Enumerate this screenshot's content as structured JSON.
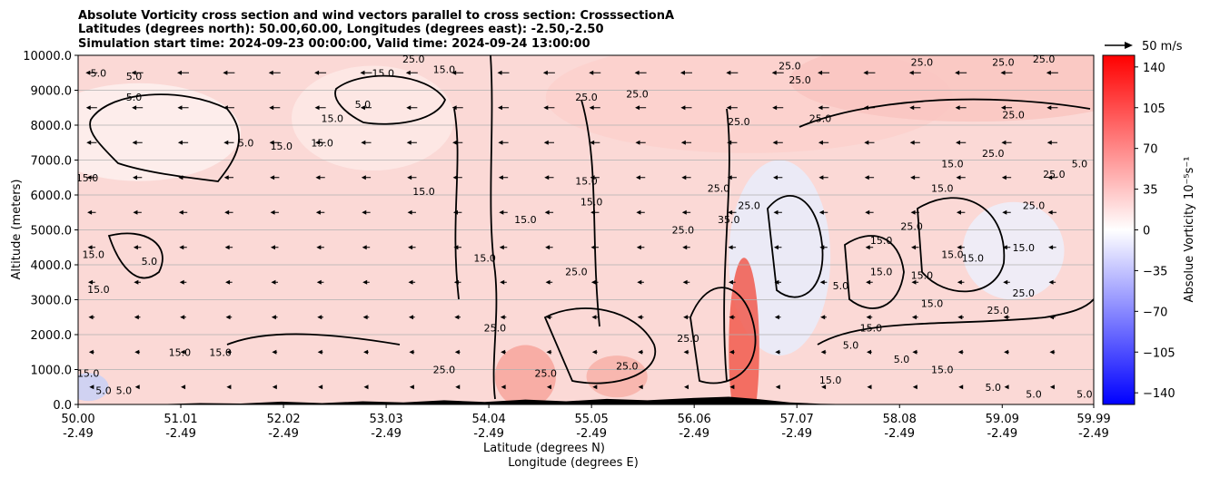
{
  "chart_data": {
    "type": "heatmap",
    "title_lines": [
      "Absolute Vorticity cross section and wind vectors parallel to cross section: CrosssectionA",
      "Latitudes (degrees north): 50.00,60.00, Longitudes (degrees east): -2.50,-2.50",
      "Simulation start time: 2024-09-23 00:00:00, Valid time: 2024-09-24 13:00:00"
    ],
    "ylabel": "Altitude (meters)",
    "xlabel_lines": [
      "Latitude (degrees N)",
      "Longitude (degrees E)"
    ],
    "ylim": [
      0,
      10000
    ],
    "y_ticks": [
      0,
      1000,
      2000,
      3000,
      4000,
      5000,
      6000,
      7000,
      8000,
      9000,
      10000
    ],
    "y_tick_labels": [
      "0.0",
      "1000.0",
      "2000.0",
      "3000.0",
      "4000.0",
      "5000.0",
      "6000.0",
      "7000.0",
      "8000.0",
      "9000.0",
      "10000.0"
    ],
    "xlim": [
      50.0,
      59.99
    ],
    "x_ticks": [
      50.0,
      51.01,
      52.02,
      53.03,
      54.04,
      55.05,
      56.06,
      57.07,
      58.08,
      59.09,
      59.99
    ],
    "x_tick_labels_lat": [
      "50.00",
      "51.01",
      "52.02",
      "53.03",
      "54.04",
      "55.05",
      "56.06",
      "57.07",
      "58.08",
      "59.09",
      "59.99"
    ],
    "x_tick_labels_lon": [
      "-2.49",
      "-2.49",
      "-2.49",
      "-2.49",
      "-2.49",
      "-2.49",
      "-2.49",
      "-2.49",
      "-2.49",
      "-2.49",
      "-2.49"
    ],
    "colorbar": {
      "label": "Absolue Vorticity 10⁻⁵s⁻¹",
      "range": [
        -150,
        150
      ],
      "ticks": [
        140,
        105,
        70,
        35,
        0,
        -35,
        -70,
        -105,
        -140
      ],
      "colormap": "bwr",
      "color_low": "#0000ff",
      "color_mid": "#ffffff",
      "color_high": "#ff0000"
    },
    "quiver_key": {
      "label": "50 m/s"
    },
    "grid": "horizontal",
    "contour_levels": [
      "5.0",
      "15.0",
      "25.0",
      "35.0"
    ],
    "contour_labels": [
      {
        "text": "5.0",
        "x": 50.2,
        "y": 9500
      },
      {
        "text": "5.0",
        "x": 50.55,
        "y": 9400
      },
      {
        "text": "5.0",
        "x": 50.55,
        "y": 8800
      },
      {
        "text": "5.0",
        "x": 51.65,
        "y": 7500
      },
      {
        "text": "15.0",
        "x": 52.0,
        "y": 7400
      },
      {
        "text": "15.0",
        "x": 52.4,
        "y": 7500
      },
      {
        "text": "15.0",
        "x": 52.5,
        "y": 8200
      },
      {
        "text": "5.0",
        "x": 52.8,
        "y": 8600
      },
      {
        "text": "15.0",
        "x": 53.0,
        "y": 9500
      },
      {
        "text": "25.0",
        "x": 53.3,
        "y": 9900
      },
      {
        "text": "15.0",
        "x": 53.6,
        "y": 9600
      },
      {
        "text": "25.0",
        "x": 55.0,
        "y": 8800
      },
      {
        "text": "25.0",
        "x": 55.5,
        "y": 8900
      },
      {
        "text": "25.0",
        "x": 56.5,
        "y": 8100
      },
      {
        "text": "25.0",
        "x": 57.0,
        "y": 9700
      },
      {
        "text": "25.0",
        "x": 57.3,
        "y": 8200
      },
      {
        "text": "25.0",
        "x": 57.1,
        "y": 9300
      },
      {
        "text": "25.0",
        "x": 58.3,
        "y": 9800
      },
      {
        "text": "25.0",
        "x": 59.1,
        "y": 9800
      },
      {
        "text": "25.0",
        "x": 59.5,
        "y": 9900
      },
      {
        "text": "25.0",
        "x": 59.2,
        "y": 8300
      },
      {
        "text": "25.0",
        "x": 59.0,
        "y": 7200
      },
      {
        "text": "15.0",
        "x": 58.6,
        "y": 6900
      },
      {
        "text": "15.0",
        "x": 58.5,
        "y": 6200
      },
      {
        "text": "15.0",
        "x": 55.0,
        "y": 6400
      },
      {
        "text": "15.0",
        "x": 55.05,
        "y": 5800
      },
      {
        "text": "15.0",
        "x": 53.4,
        "y": 6100
      },
      {
        "text": "25.0",
        "x": 56.3,
        "y": 6200
      },
      {
        "text": "25.0",
        "x": 56.6,
        "y": 5700
      },
      {
        "text": "35.0",
        "x": 56.4,
        "y": 5300
      },
      {
        "text": "25.0",
        "x": 55.95,
        "y": 5000
      },
      {
        "text": "15.0",
        "x": 54.4,
        "y": 5300
      },
      {
        "text": "15.0",
        "x": 54.0,
        "y": 4200
      },
      {
        "text": "25.0",
        "x": 54.9,
        "y": 3800
      },
      {
        "text": "15.0",
        "x": 50.15,
        "y": 4300
      },
      {
        "text": "5.0",
        "x": 50.7,
        "y": 4100
      },
      {
        "text": "15.0",
        "x": 50.2,
        "y": 3300
      },
      {
        "text": "15.0",
        "x": 50.0,
        "y": 6500
      },
      {
        "text": "15.0",
        "x": 51.0,
        "y": 1500
      },
      {
        "text": "15.0",
        "x": 51.4,
        "y": 1500
      },
      {
        "text": "5.0",
        "x": 50.25,
        "y": 400
      },
      {
        "text": "15.0",
        "x": 50.1,
        "y": 900
      },
      {
        "text": "5.0",
        "x": 50.45,
        "y": 400
      },
      {
        "text": "25.0",
        "x": 54.6,
        "y": 900
      },
      {
        "text": "25.0",
        "x": 53.6,
        "y": 1000
      },
      {
        "text": "25.0",
        "x": 54.1,
        "y": 2200
      },
      {
        "text": "25.0",
        "x": 55.4,
        "y": 1100
      },
      {
        "text": "25.0",
        "x": 56.0,
        "y": 1900
      },
      {
        "text": "5.0",
        "x": 57.5,
        "y": 3400
      },
      {
        "text": "15.0",
        "x": 57.9,
        "y": 3800
      },
      {
        "text": "15.0",
        "x": 58.3,
        "y": 3700
      },
      {
        "text": "15.0",
        "x": 58.6,
        "y": 4300
      },
      {
        "text": "15.0",
        "x": 58.8,
        "y": 4200
      },
      {
        "text": "15.0",
        "x": 59.3,
        "y": 4500
      },
      {
        "text": "25.0",
        "x": 59.05,
        "y": 2700
      },
      {
        "text": "25.0",
        "x": 59.3,
        "y": 3200
      },
      {
        "text": "15.0",
        "x": 58.4,
        "y": 2900
      },
      {
        "text": "15.0",
        "x": 57.8,
        "y": 2200
      },
      {
        "text": "5.0",
        "x": 58.1,
        "y": 1300
      },
      {
        "text": "15.0",
        "x": 58.5,
        "y": 1000
      },
      {
        "text": "5.0",
        "x": 59.0,
        "y": 500
      },
      {
        "text": "5.0",
        "x": 59.4,
        "y": 300
      },
      {
        "text": "5.0",
        "x": 59.9,
        "y": 300
      },
      {
        "text": "15.0",
        "x": 57.4,
        "y": 700
      },
      {
        "text": "5.0",
        "x": 57.6,
        "y": 1700
      },
      {
        "text": "15.0",
        "x": 57.9,
        "y": 4700
      },
      {
        "text": "25.0",
        "x": 58.2,
        "y": 5100
      },
      {
        "text": "25.0",
        "x": 59.4,
        "y": 5700
      },
      {
        "text": "25.0",
        "x": 59.6,
        "y": 6600
      },
      {
        "text": "5.0",
        "x": 59.85,
        "y": 6900
      }
    ],
    "series": [
      {
        "name": "wind_u_profile",
        "x": [
          50.0,
          51.0,
          52.0,
          53.0,
          54.0,
          55.0,
          56.0,
          57.0,
          58.0,
          59.0,
          60.0
        ],
        "heights": [
          500,
          1500,
          2500,
          3500,
          4500,
          5500,
          6500,
          7500,
          8500,
          9500
        ],
        "u": [
          -2,
          -4,
          -6,
          -8,
          -10,
          -12,
          -14,
          -16,
          -18,
          -20
        ]
      }
    ]
  }
}
